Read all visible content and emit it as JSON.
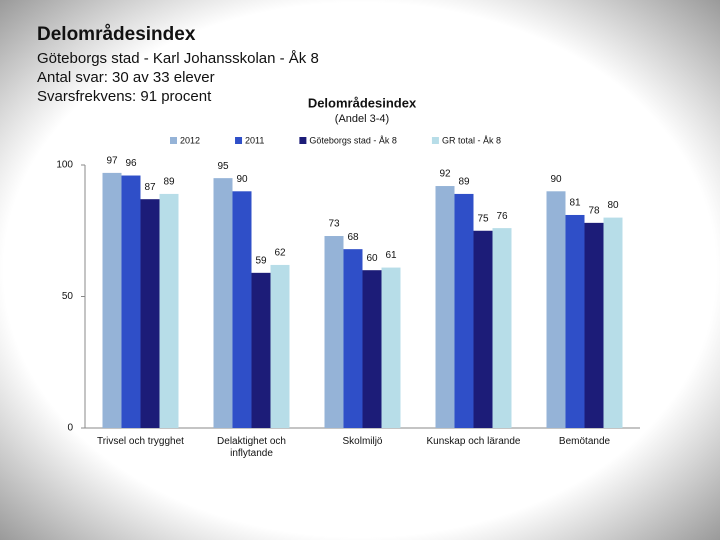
{
  "header": {
    "title": "Delområdesindex",
    "lines": [
      "Göteborgs stad - Karl Johansskolan - Åk 8",
      "Antal svar: 30 av 33 elever",
      "Svarsfrekvens: 91 procent"
    ]
  },
  "chart_data": {
    "type": "bar",
    "title": "Delområdesindex",
    "subtitle": "(Andel 3-4)",
    "categories": [
      "Trivsel och trygghet",
      "Delaktighet och inflytande",
      "Skolmiljö",
      "Kunskap och lärande",
      "Bemötande"
    ],
    "series": [
      {
        "name": "2012",
        "color": "#95b3d7",
        "values": [
          97,
          95,
          73,
          92,
          90
        ]
      },
      {
        "name": "2011",
        "color": "#2f4fc8",
        "values": [
          96,
          90,
          68,
          89,
          81
        ]
      },
      {
        "name": "Göteborgs stad - Åk 8",
        "color": "#1c1c78",
        "values": [
          87,
          59,
          60,
          75,
          78
        ]
      },
      {
        "name": "GR total - Åk 8",
        "color": "#b7dde8",
        "values": [
          89,
          62,
          61,
          76,
          80
        ]
      }
    ],
    "ylim": [
      0,
      100
    ],
    "yticks": [
      0,
      50,
      100
    ],
    "grid": false,
    "legend": "top"
  }
}
